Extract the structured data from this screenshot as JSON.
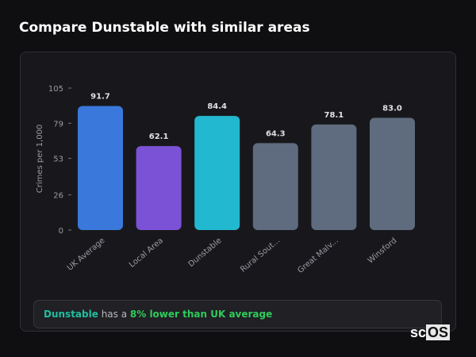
{
  "title": "Compare Dunstable with similar areas",
  "chart_data": {
    "type": "bar",
    "categories": [
      "UK Average",
      "Local Area",
      "Dunstable",
      "Rural Sout...",
      "Great Malv...",
      "Winsford"
    ],
    "values": [
      91.7,
      62.1,
      84.4,
      64.3,
      78.1,
      83.0
    ],
    "value_labels": [
      "91.7",
      "62.1",
      "84.4",
      "64.3",
      "78.1",
      "83.0"
    ],
    "colors": [
      "#3a78dc",
      "#7b52d6",
      "#22b8cf",
      "#5f6b7e",
      "#5f6b7e",
      "#5f6b7e"
    ],
    "ylabel": "Crimes per 1,000",
    "xlabel": "",
    "yticks": [
      "0",
      "26",
      "53",
      "79",
      "105"
    ],
    "ylim": [
      0,
      105
    ],
    "grid": false
  },
  "summary": {
    "area": "Dunstable",
    "middle": " has a ",
    "comparison": "8% lower than UK average"
  },
  "logo": {
    "prefix": "sc",
    "suffix": "OS"
  }
}
